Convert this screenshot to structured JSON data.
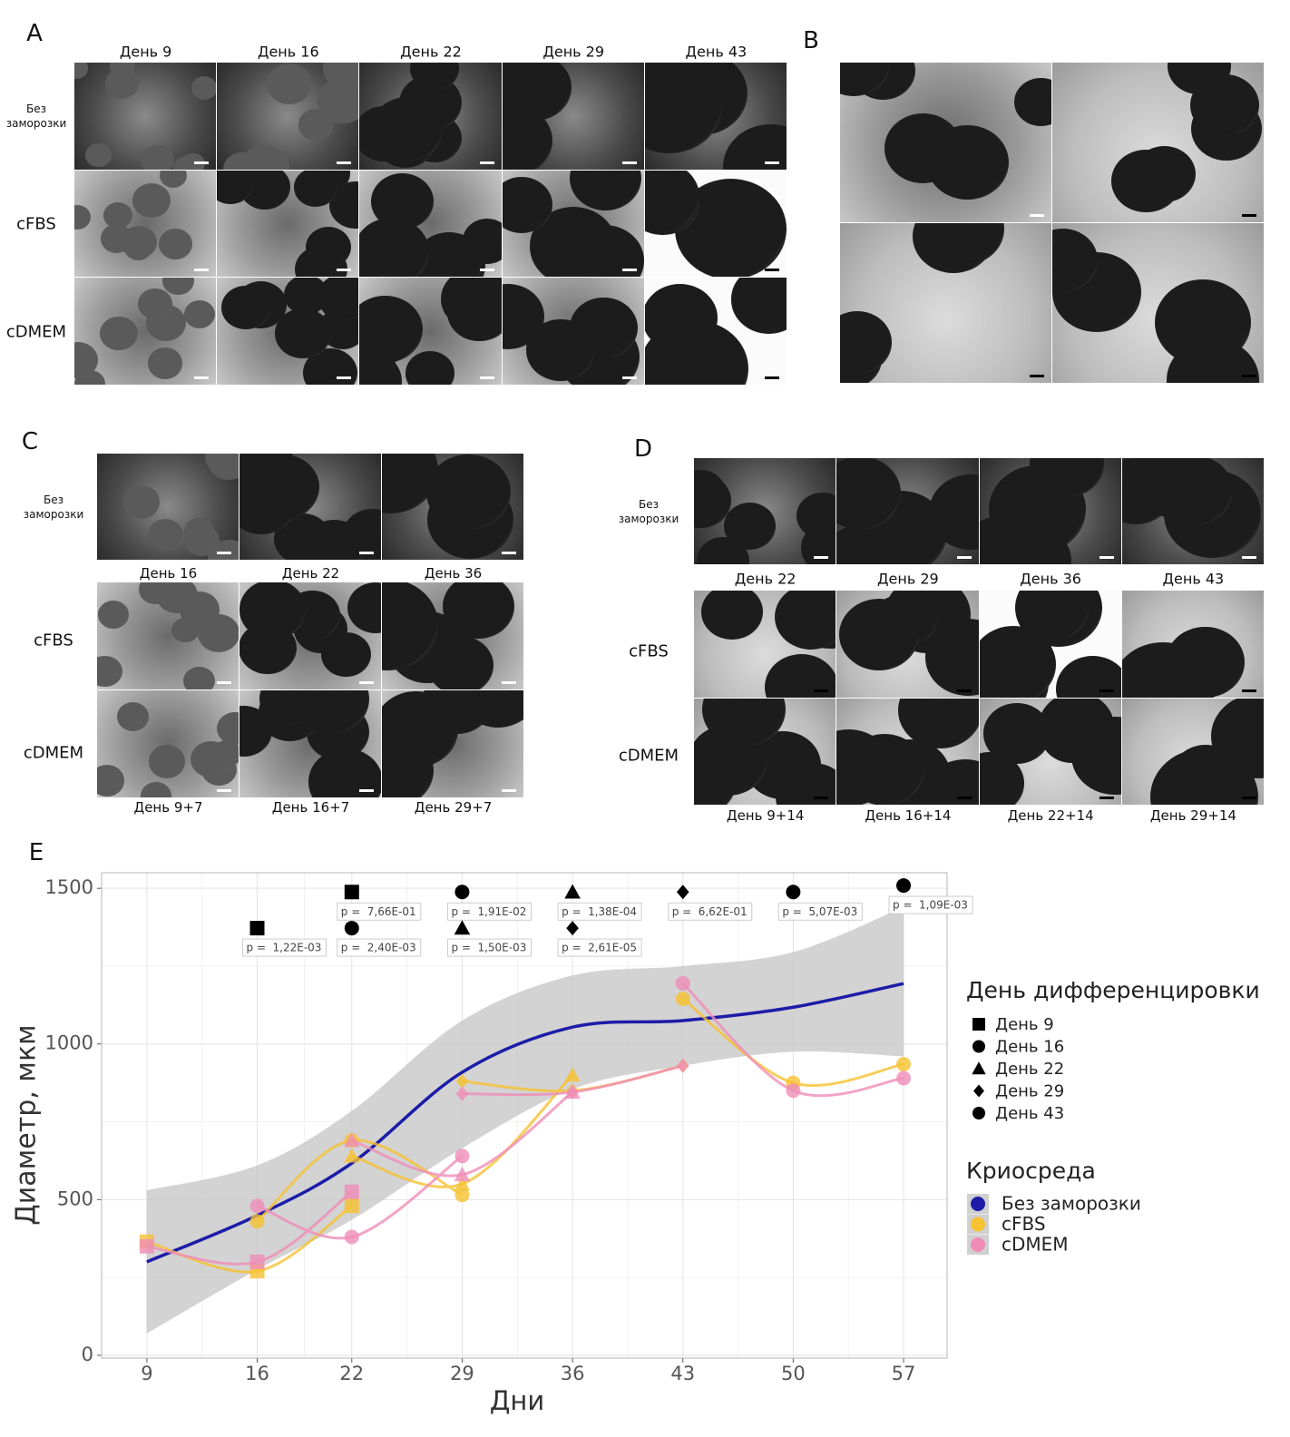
{
  "panels": {
    "A": {
      "label": "A",
      "columns": [
        "День 9",
        "День 16",
        "День 22",
        "День 29",
        "День 43"
      ],
      "rows": [
        "Без заморозки",
        "cFBS",
        "cDMEM"
      ]
    },
    "B": {
      "label": "B"
    },
    "C": {
      "label": "C",
      "rows": [
        "Без заморозки",
        "cFBS",
        "cDMEM"
      ],
      "columns_top": [
        "День 16",
        "День 22",
        "День 36"
      ],
      "columns_bottom": [
        "День 9+7",
        "День 16+7",
        "День 29+7"
      ]
    },
    "D": {
      "label": "D",
      "rows": [
        "Без заморозки",
        "cFBS",
        "cDMEM"
      ],
      "columns_top": [
        "День 22",
        "День 29",
        "День 36",
        "День 43"
      ],
      "columns_bottom": [
        "День 9+14",
        "День 16+14",
        "День 22+14",
        "День 29+14"
      ]
    }
  },
  "chart_data": {
    "type": "line",
    "panel_label": "E",
    "x_label": "Дни",
    "y_label": "Диаметр, мкм",
    "xlim": [
      6.13,
      59.76
    ],
    "xticks": [
      9,
      16,
      22,
      29,
      36,
      43,
      50,
      57
    ],
    "ylim": [
      -9,
      1550
    ],
    "yticks": [
      0,
      500,
      1000,
      1500
    ],
    "grid": true,
    "group_legend_title": "День дифференцировки",
    "groups": [
      "День 9",
      "День 16",
      "День 22",
      "День 29",
      "День 43"
    ],
    "series_legend_title": "Криосреда",
    "series": [
      {
        "name": "Без заморозки",
        "color": "#1c1ca8",
        "x": [
          9,
          16,
          22,
          29,
          36,
          43,
          50,
          57
        ],
        "values": [
          300,
          449,
          617,
          909,
          1054,
          1075,
          1118,
          1194
        ],
        "ci_lower": [
          70,
          275,
          435,
          665,
          855,
          930,
          975,
          960
        ],
        "ci_upper": [
          530,
          610,
          785,
          1075,
          1220,
          1250,
          1295,
          1440
        ]
      },
      {
        "name": "cFBS",
        "color": "#f6c232",
        "x": [
          9,
          16,
          22,
          null,
          16,
          22,
          29,
          null,
          22,
          29,
          36,
          null,
          29,
          36,
          43,
          null,
          43,
          50,
          57
        ],
        "values": [
          365,
          270,
          480,
          null,
          430,
          690,
          515,
          null,
          640,
          550,
          900,
          null,
          880,
          850,
          930,
          null,
          1145,
          875,
          935
        ]
      },
      {
        "name": "cDMEM",
        "color": "#ef8db8",
        "x": [
          9,
          16,
          22,
          null,
          16,
          22,
          29,
          null,
          22,
          29,
          36,
          null,
          29,
          36,
          43,
          null,
          43,
          50,
          57
        ],
        "values": [
          350,
          300,
          525,
          null,
          480,
          380,
          640,
          null,
          690,
          580,
          845,
          null,
          840,
          845,
          930,
          null,
          1195,
          850,
          890
        ]
      }
    ],
    "p_prefix": "p =",
    "annotations": [
      {
        "x": 16,
        "y": 1372,
        "group": 0,
        "label": "1,22E-03"
      },
      {
        "x": 22,
        "y": 1488,
        "group": 0,
        "label": "7,66E-01"
      },
      {
        "x": 22,
        "y": 1372,
        "group": 1,
        "label": "2,40E-03"
      },
      {
        "x": 29,
        "y": 1488,
        "group": 1,
        "label": "1,91E-02"
      },
      {
        "x": 29,
        "y": 1372,
        "group": 2,
        "label": "1,50E-03"
      },
      {
        "x": 36,
        "y": 1488,
        "group": 2,
        "label": "1,38E-04"
      },
      {
        "x": 36,
        "y": 1372,
        "group": 3,
        "label": "2,61E-05"
      },
      {
        "x": 43,
        "y": 1488,
        "group": 3,
        "label": "6,62E-01"
      },
      {
        "x": 50,
        "y": 1488,
        "group": 4,
        "label": "5,07E-03"
      },
      {
        "x": 57,
        "y": 1509,
        "group": 4,
        "label": "1,09E-03"
      }
    ]
  }
}
